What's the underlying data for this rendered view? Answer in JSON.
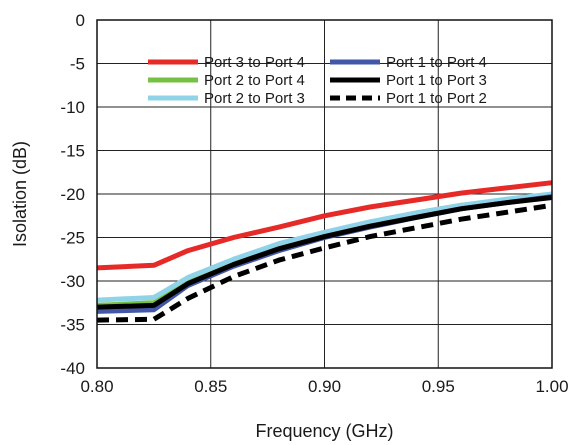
{
  "chart_data": {
    "type": "line",
    "xlabel": "Frequency (GHz)",
    "ylabel": "Isolation (dB)",
    "xlim": [
      0.8,
      1.0
    ],
    "ylim": [
      -40,
      0
    ],
    "xticks": [
      "0.80",
      "0.85",
      "0.90",
      "0.95",
      "1.00"
    ],
    "yticks": [
      "0",
      "-5",
      "-10",
      "-15",
      "-20",
      "-25",
      "-30",
      "-35",
      "-40"
    ],
    "grid": true,
    "legend_position": "top-right",
    "series": [
      {
        "name": "Port 3 to Port 4",
        "color": "#e52a27",
        "dash": "solid",
        "x": [
          0.8,
          0.825,
          0.84,
          0.86,
          0.88,
          0.9,
          0.92,
          0.94,
          0.96,
          0.98,
          1.0
        ],
        "y": [
          -28.5,
          -28.2,
          -26.5,
          -25.0,
          -23.8,
          -22.5,
          -21.5,
          -20.7,
          -19.9,
          -19.3,
          -18.7
        ]
      },
      {
        "name": "Port 2 to Port 4",
        "color": "#76c043",
        "dash": "solid",
        "x": [
          0.8,
          0.825,
          0.84,
          0.86,
          0.88,
          0.9,
          0.92,
          0.94,
          0.96,
          0.98,
          1.0
        ],
        "y": [
          -32.8,
          -32.5,
          -30.0,
          -27.7,
          -25.8,
          -24.5,
          -23.3,
          -22.2,
          -21.3,
          -20.7,
          -20.1
        ]
      },
      {
        "name": "Port 2 to Port 3",
        "color": "#8fd3e8",
        "dash": "solid",
        "x": [
          0.8,
          0.825,
          0.84,
          0.86,
          0.88,
          0.9,
          0.92,
          0.94,
          0.96,
          0.98,
          1.0
        ],
        "y": [
          -32.2,
          -31.9,
          -29.6,
          -27.5,
          -25.7,
          -24.4,
          -23.2,
          -22.2,
          -21.3,
          -20.6,
          -20.0
        ]
      },
      {
        "name": "Port 1 to Port 4",
        "color": "#4257a7",
        "dash": "solid",
        "x": [
          0.8,
          0.825,
          0.84,
          0.86,
          0.88,
          0.9,
          0.92,
          0.94,
          0.96,
          0.98,
          1.0
        ],
        "y": [
          -33.5,
          -33.3,
          -30.5,
          -28.3,
          -26.5,
          -25.0,
          -23.8,
          -22.7,
          -21.7,
          -21.0,
          -20.3
        ]
      },
      {
        "name": "Port 1 to Port 3",
        "color": "#000000",
        "dash": "solid",
        "x": [
          0.8,
          0.825,
          0.84,
          0.86,
          0.88,
          0.9,
          0.92,
          0.94,
          0.96,
          0.98,
          1.0
        ],
        "y": [
          -33.0,
          -32.8,
          -30.3,
          -28.1,
          -26.3,
          -24.9,
          -23.7,
          -22.7,
          -21.7,
          -21.0,
          -20.4
        ]
      },
      {
        "name": "Port 1 to Port 2",
        "color": "#000000",
        "dash": "dashed",
        "x": [
          0.8,
          0.825,
          0.84,
          0.86,
          0.88,
          0.9,
          0.92,
          0.94,
          0.96,
          0.98,
          1.0
        ],
        "y": [
          -34.5,
          -34.4,
          -32.0,
          -29.5,
          -27.6,
          -26.2,
          -24.9,
          -23.9,
          -22.9,
          -22.1,
          -21.3
        ]
      }
    ]
  }
}
